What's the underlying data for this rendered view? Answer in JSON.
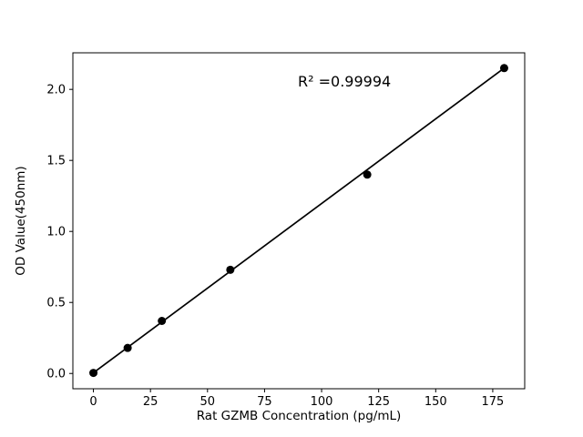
{
  "chart_data": {
    "type": "scatter",
    "title": "",
    "xlabel": "Rat GZMB Concentration (pg/mL)",
    "ylabel": "OD Value(450nm)",
    "x": [
      0,
      15,
      30,
      60,
      120,
      180
    ],
    "y": [
      0.004,
      0.18,
      0.37,
      0.73,
      1.4,
      2.15
    ],
    "fit_line": {
      "x": [
        0,
        180
      ],
      "y": [
        0.005,
        2.15
      ]
    },
    "annotation": {
      "text": "R² =0.99994",
      "x": 110,
      "y": 2.02
    },
    "xlim": [
      -9,
      189
    ],
    "ylim": [
      -0.1075,
      2.2575
    ],
    "xticks": [
      "0",
      "25",
      "50",
      "75",
      "100",
      "125",
      "150",
      "175"
    ],
    "yticks": [
      "0.0",
      "0.5",
      "1.0",
      "1.5",
      "2.0"
    ],
    "grid": false,
    "legend": null,
    "marker_color": "#000000",
    "line_color": "#000000",
    "axis_color": "#000000",
    "background": "#ffffff"
  }
}
